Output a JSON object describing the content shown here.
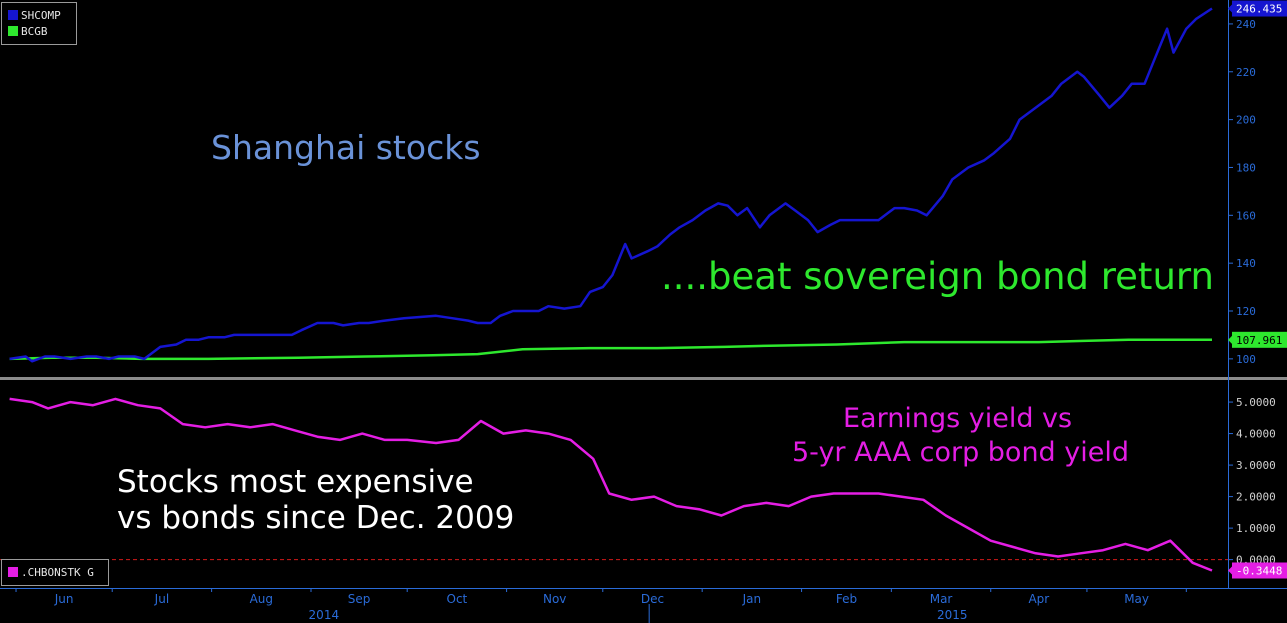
{
  "chart_data": [
    {
      "type": "line",
      "title": "",
      "ylim": [
        92,
        250
      ],
      "y_ticks": [
        100,
        120,
        140,
        160,
        180,
        200,
        220,
        240
      ],
      "series": [
        {
          "name": "SHCOMP",
          "color": "#1515d0",
          "last_value_label": "246.435",
          "points": [
            [
              "2014-05-30",
              100
            ],
            [
              "2014-06-04",
              101
            ],
            [
              "2014-06-06",
              99
            ],
            [
              "2014-06-10",
              101
            ],
            [
              "2014-06-13",
              101
            ],
            [
              "2014-06-18",
              100
            ],
            [
              "2014-06-23",
              101
            ],
            [
              "2014-06-26",
              101
            ],
            [
              "2014-06-30",
              100
            ],
            [
              "2014-07-03",
              101
            ],
            [
              "2014-07-08",
              101
            ],
            [
              "2014-07-11",
              100
            ],
            [
              "2014-07-16",
              105
            ],
            [
              "2014-07-21",
              106
            ],
            [
              "2014-07-24",
              108
            ],
            [
              "2014-07-28",
              108
            ],
            [
              "2014-07-31",
              109
            ],
            [
              "2014-08-05",
              109
            ],
            [
              "2014-08-08",
              110
            ],
            [
              "2014-08-13",
              110
            ],
            [
              "2014-08-18",
              110
            ],
            [
              "2014-08-21",
              110
            ],
            [
              "2014-08-26",
              110
            ],
            [
              "2014-08-29",
              112
            ],
            [
              "2014-09-03",
              115
            ],
            [
              "2014-09-08",
              115
            ],
            [
              "2014-09-11",
              114
            ],
            [
              "2014-09-16",
              115
            ],
            [
              "2014-09-19",
              115
            ],
            [
              "2014-09-24",
              116
            ],
            [
              "2014-09-30",
              117
            ],
            [
              "2014-10-10",
              118
            ],
            [
              "2014-10-15",
              117
            ],
            [
              "2014-10-20",
              116
            ],
            [
              "2014-10-23",
              115
            ],
            [
              "2014-10-27",
              115
            ],
            [
              "2014-10-30",
              118
            ],
            [
              "2014-11-03",
              120
            ],
            [
              "2014-11-06",
              120
            ],
            [
              "2014-11-11",
              120
            ],
            [
              "2014-11-14",
              122
            ],
            [
              "2014-11-19",
              121
            ],
            [
              "2014-11-24",
              122
            ],
            [
              "2014-11-27",
              128
            ],
            [
              "2014-12-01",
              130
            ],
            [
              "2014-12-04",
              135
            ],
            [
              "2014-12-08",
              148
            ],
            [
              "2014-12-10",
              142
            ],
            [
              "2014-12-15",
              145
            ],
            [
              "2014-12-18",
              147
            ],
            [
              "2014-12-22",
              152
            ],
            [
              "2014-12-25",
              155
            ],
            [
              "2014-12-29",
              158
            ],
            [
              "2015-01-02",
              162
            ],
            [
              "2015-01-06",
              165
            ],
            [
              "2015-01-09",
              164
            ],
            [
              "2015-01-12",
              160
            ],
            [
              "2015-01-15",
              163
            ],
            [
              "2015-01-19",
              155
            ],
            [
              "2015-01-22",
              160
            ],
            [
              "2015-01-27",
              165
            ],
            [
              "2015-01-30",
              162
            ],
            [
              "2015-02-03",
              158
            ],
            [
              "2015-02-06",
              153
            ],
            [
              "2015-02-10",
              156
            ],
            [
              "2015-02-13",
              158
            ],
            [
              "2015-02-17",
              158
            ],
            [
              "2015-02-25",
              158
            ],
            [
              "2015-03-02",
              163
            ],
            [
              "2015-03-05",
              163
            ],
            [
              "2015-03-09",
              162
            ],
            [
              "2015-03-12",
              160
            ],
            [
              "2015-03-17",
              168
            ],
            [
              "2015-03-20",
              175
            ],
            [
              "2015-03-25",
              180
            ],
            [
              "2015-03-30",
              183
            ],
            [
              "2015-04-02",
              186
            ],
            [
              "2015-04-07",
              192
            ],
            [
              "2015-04-10",
              200
            ],
            [
              "2015-04-15",
              205
            ],
            [
              "2015-04-20",
              210
            ],
            [
              "2015-04-23",
              215
            ],
            [
              "2015-04-28",
              220
            ],
            [
              "2015-04-30",
              218
            ],
            [
              "2015-05-05",
              210
            ],
            [
              "2015-05-08",
              205
            ],
            [
              "2015-05-12",
              210
            ],
            [
              "2015-05-15",
              215
            ],
            [
              "2015-05-19",
              215
            ],
            [
              "2015-05-22",
              225
            ],
            [
              "2015-05-26",
              238
            ],
            [
              "2015-05-28",
              228
            ],
            [
              "2015-06-01",
              238
            ],
            [
              "2015-06-04",
              242
            ],
            [
              "2015-06-09",
              246.435
            ]
          ]
        },
        {
          "name": "BCGB",
          "color": "#2ee82e",
          "last_value_label": "107.961",
          "points": [
            [
              "2014-05-30",
              100
            ],
            [
              "2014-06-12",
              100.5
            ],
            [
              "2014-06-26",
              100.5
            ],
            [
              "2014-07-10",
              100
            ],
            [
              "2014-07-31",
              100
            ],
            [
              "2014-08-28",
              100.5
            ],
            [
              "2014-09-18",
              101
            ],
            [
              "2014-10-09",
              101.5
            ],
            [
              "2014-10-23",
              102
            ],
            [
              "2014-11-06",
              104
            ],
            [
              "2014-11-27",
              104.5
            ],
            [
              "2014-12-18",
              104.5
            ],
            [
              "2015-01-08",
              105
            ],
            [
              "2015-01-22",
              105.5
            ],
            [
              "2015-02-12",
              106
            ],
            [
              "2015-03-05",
              107
            ],
            [
              "2015-03-26",
              107
            ],
            [
              "2015-04-16",
              107
            ],
            [
              "2015-04-30",
              107.5
            ],
            [
              "2015-05-14",
              108
            ],
            [
              "2015-05-28",
              108
            ],
            [
              "2015-06-09",
              107.961
            ]
          ]
        }
      ]
    },
    {
      "type": "line",
      "title": "",
      "ylim": [
        -0.9,
        5.7
      ],
      "y_ticks": [
        "5.0000",
        "4.0000",
        "3.0000",
        "2.0000",
        "1.0000",
        "0.0000"
      ],
      "reference_line": 0,
      "series": [
        {
          "name": ".CHBONSTK G",
          "color": "#e41ee4",
          "last_value_label": "-0.3448",
          "points": [
            [
              "2014-05-30",
              5.1
            ],
            [
              "2014-06-06",
              5.0
            ],
            [
              "2014-06-11",
              4.8
            ],
            [
              "2014-06-18",
              5.0
            ],
            [
              "2014-06-25",
              4.9
            ],
            [
              "2014-07-02",
              5.1
            ],
            [
              "2014-07-09",
              4.9
            ],
            [
              "2014-07-16",
              4.8
            ],
            [
              "2014-07-23",
              4.3
            ],
            [
              "2014-07-30",
              4.2
            ],
            [
              "2014-08-06",
              4.3
            ],
            [
              "2014-08-13",
              4.2
            ],
            [
              "2014-08-20",
              4.3
            ],
            [
              "2014-08-27",
              4.1
            ],
            [
              "2014-09-03",
              3.9
            ],
            [
              "2014-09-10",
              3.8
            ],
            [
              "2014-09-17",
              4.0
            ],
            [
              "2014-09-24",
              3.8
            ],
            [
              "2014-10-01",
              3.8
            ],
            [
              "2014-10-10",
              3.7
            ],
            [
              "2014-10-17",
              3.8
            ],
            [
              "2014-10-24",
              4.4
            ],
            [
              "2014-10-31",
              4.0
            ],
            [
              "2014-11-07",
              4.1
            ],
            [
              "2014-11-14",
              4.0
            ],
            [
              "2014-11-21",
              3.8
            ],
            [
              "2014-11-28",
              3.2
            ],
            [
              "2014-12-03",
              2.1
            ],
            [
              "2014-12-10",
              1.9
            ],
            [
              "2014-12-17",
              2.0
            ],
            [
              "2014-12-24",
              1.7
            ],
            [
              "2014-12-31",
              1.6
            ],
            [
              "2015-01-07",
              1.4
            ],
            [
              "2015-01-14",
              1.7
            ],
            [
              "2015-01-21",
              1.8
            ],
            [
              "2015-01-28",
              1.7
            ],
            [
              "2015-02-04",
              2.0
            ],
            [
              "2015-02-11",
              2.1
            ],
            [
              "2015-02-18",
              2.1
            ],
            [
              "2015-02-25",
              2.1
            ],
            [
              "2015-03-04",
              2.0
            ],
            [
              "2015-03-11",
              1.9
            ],
            [
              "2015-03-18",
              1.4
            ],
            [
              "2015-03-25",
              1.0
            ],
            [
              "2015-04-01",
              0.6
            ],
            [
              "2015-04-08",
              0.4
            ],
            [
              "2015-04-15",
              0.2
            ],
            [
              "2015-04-22",
              0.1
            ],
            [
              "2015-04-29",
              0.2
            ],
            [
              "2015-05-06",
              0.3
            ],
            [
              "2015-05-13",
              0.5
            ],
            [
              "2015-05-20",
              0.3
            ],
            [
              "2015-05-27",
              0.6
            ],
            [
              "2015-06-03",
              -0.1
            ],
            [
              "2015-06-09",
              -0.3448
            ]
          ]
        }
      ]
    }
  ],
  "x_axis": {
    "months": [
      "Jun",
      "Jul",
      "Aug",
      "Sep",
      "Oct",
      "Nov",
      "Dec",
      "Jan",
      "Feb",
      "Mar",
      "Apr",
      "May"
    ],
    "years": [
      "2014",
      "2015"
    ]
  },
  "annotations": {
    "shanghai": "Shanghai stocks",
    "beat": "....beat sovereign bond return",
    "earnings_line1": "Earnings yield vs",
    "earnings_line2": "5-yr AAA corp bond yield",
    "expensive_line1": "Stocks most expensive",
    "expensive_line2": "vs bonds since Dec. 2009"
  },
  "colors": {
    "background": "#000000",
    "axis": "#2a6bd8",
    "shcomp": "#1515d0",
    "bcgb": "#2ee82e",
    "spread": "#e41ee4",
    "title_blue": "#6a92d8"
  }
}
